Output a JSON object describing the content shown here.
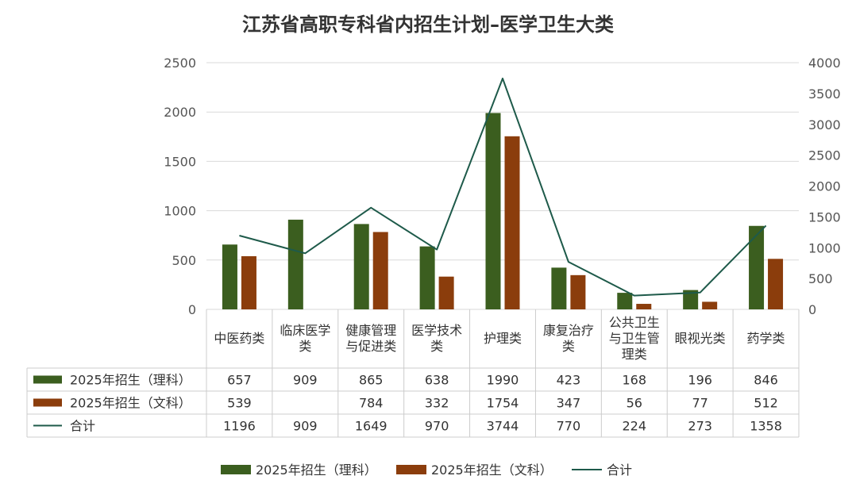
{
  "chart_data": {
    "type": "bar",
    "title": "江苏省高职专科省内招生计划–医学卫生大类",
    "categories": [
      [
        "中医药类"
      ],
      [
        "临床医学",
        "类"
      ],
      [
        "健康管理",
        "与促进类"
      ],
      [
        "医学技术",
        "类"
      ],
      [
        "护理类"
      ],
      [
        "康复治疗",
        "类"
      ],
      [
        "公共卫生",
        "与卫生管",
        "理类"
      ],
      [
        "眼视光类"
      ],
      [
        "药学类"
      ]
    ],
    "series": [
      {
        "name": "2025年招生（理科）",
        "kind": "bar",
        "axis": "left",
        "color": "#3b5e1f",
        "values": [
          657,
          909,
          865,
          638,
          1990,
          423,
          168,
          196,
          846
        ]
      },
      {
        "name": "2025年招生（文科）",
        "kind": "bar",
        "axis": "left",
        "color": "#8b3d0c",
        "values": [
          539,
          null,
          784,
          332,
          1754,
          347,
          56,
          77,
          512
        ]
      },
      {
        "name": "合计",
        "kind": "line",
        "axis": "right",
        "color": "#1e5a4a",
        "values": [
          1196,
          909,
          1649,
          970,
          3744,
          770,
          224,
          273,
          1358
        ]
      }
    ],
    "y_left": {
      "min": 0,
      "max": 2500,
      "ticks": [
        0,
        500,
        1000,
        1500,
        2000,
        2500
      ]
    },
    "y_right": {
      "min": 0,
      "max": 4000,
      "ticks": [
        0,
        500,
        1000,
        1500,
        2000,
        2500,
        3000,
        3500,
        4000
      ]
    },
    "grid": true,
    "legend_position": "bottom",
    "data_table": true
  }
}
